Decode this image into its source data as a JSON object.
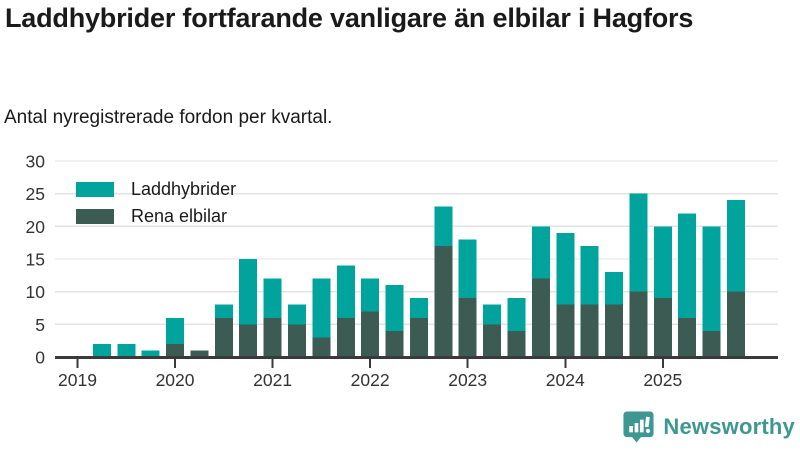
{
  "header": {
    "title": "Laddhybrider fortfarande vanligare än elbilar i Hagfors",
    "subtitle": "Antal nyregistrerade fordon per kvartal."
  },
  "legend": {
    "items": [
      {
        "label": "Laddhybrider",
        "color": "#00a49c"
      },
      {
        "label": "Rena elbilar",
        "color": "#3b5b53"
      }
    ]
  },
  "footer": {
    "brand": "Newsworthy",
    "brand_color": "#3f9792"
  },
  "colors": {
    "axis": "#3a3a3a",
    "gridline": "#e3e3e3",
    "tick_text": "#333333"
  },
  "chart_data": {
    "type": "bar",
    "stacked": true,
    "title": "Laddhybrider fortfarande vanligare än elbilar i Hagfors",
    "subtitle": "Antal nyregistrerade fordon per kvartal.",
    "categories": [
      "2019 Q1",
      "2019 Q2",
      "2019 Q3",
      "2019 Q4",
      "2020 Q1",
      "2020 Q2",
      "2020 Q3",
      "2020 Q4",
      "2021 Q1",
      "2021 Q2",
      "2021 Q3",
      "2021 Q4",
      "2022 Q1",
      "2022 Q2",
      "2022 Q3",
      "2022 Q4",
      "2023 Q1",
      "2023 Q2",
      "2023 Q3",
      "2023 Q4",
      "2024 Q1",
      "2024 Q2",
      "2024 Q3",
      "2024 Q4",
      "2025 Q1",
      "2025 Q2",
      "2025 Q3",
      "2025 Q4"
    ],
    "series": [
      {
        "name": "Rena elbilar",
        "color": "#3b5b53",
        "stack_position": "bottom",
        "values": [
          0,
          0,
          0,
          0,
          2,
          1,
          6,
          5,
          6,
          5,
          3,
          6,
          7,
          4,
          6,
          17,
          9,
          5,
          4,
          12,
          8,
          8,
          8,
          10,
          9,
          6,
          4,
          10
        ]
      },
      {
        "name": "Laddhybrider",
        "color": "#00a49c",
        "stack_position": "top",
        "values": [
          0,
          2,
          2,
          1,
          4,
          0,
          2,
          10,
          6,
          3,
          9,
          8,
          5,
          7,
          3,
          6,
          9,
          3,
          5,
          8,
          11,
          9,
          5,
          15,
          11,
          16,
          16,
          14
        ]
      }
    ],
    "ylim": [
      0,
      30
    ],
    "yticks": [
      0,
      5,
      10,
      15,
      20,
      25,
      30
    ],
    "x_tick_labels": [
      "2019",
      "2020",
      "2021",
      "2022",
      "2023",
      "2024",
      "2025"
    ],
    "grid": true,
    "legend_position": "top-left"
  }
}
